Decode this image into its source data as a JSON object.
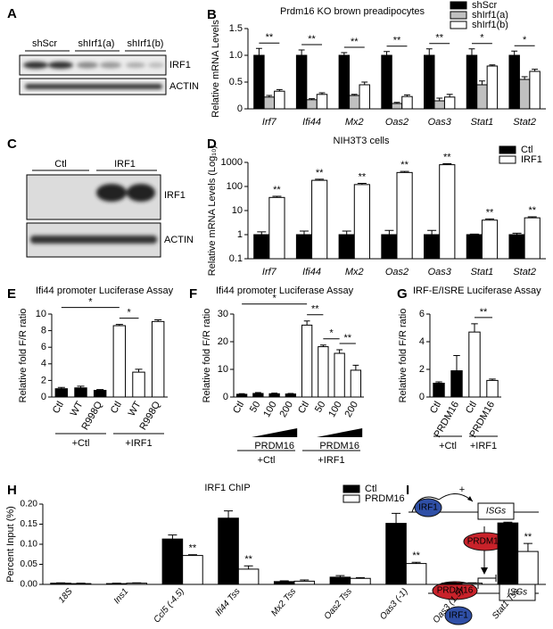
{
  "blots": [
    {
      "panel": "A",
      "lanes": [
        "shScr",
        "shIrf1(a)",
        "shIrf1(b)"
      ],
      "bands": [
        "IRF1",
        "ACTIN"
      ]
    },
    {
      "panel": "C",
      "lanes": [
        "Ctl",
        "IRF1"
      ],
      "bands": [
        "IRF1",
        "ACTIN"
      ]
    }
  ],
  "diagram": {
    "panel": "I",
    "labels": [
      "IRF1",
      "+",
      "ISGs",
      "PRDM16",
      "PRDM16",
      "ISGs",
      "IRF1"
    ]
  },
  "chart_data": [
    {
      "type": "bar",
      "panel": "B",
      "title": "Prdm16 KO brown preadipocytes",
      "ylabel": "Relative mRNA Levels",
      "categories": [
        "Irf7",
        "Ifi44",
        "Mx2",
        "Oas2",
        "Oas3",
        "Stat1",
        "Stat2"
      ],
      "series": [
        {
          "name": "shScr",
          "color": "#000000",
          "values": [
            1.0,
            1.0,
            1.0,
            1.0,
            1.0,
            1.0,
            1.0
          ],
          "errors": [
            0.13,
            0.1,
            0.05,
            0.07,
            0.12,
            0.12,
            0.08
          ]
        },
        {
          "name": "shIrf1(a)",
          "color": "#c0c0c0",
          "values": [
            0.22,
            0.17,
            0.25,
            0.1,
            0.15,
            0.45,
            0.55
          ],
          "errors": [
            0.03,
            0.02,
            0.02,
            0.02,
            0.05,
            0.07,
            0.05
          ]
        },
        {
          "name": "shIrf1(b)",
          "color": "#ffffff",
          "values": [
            0.33,
            0.27,
            0.45,
            0.23,
            0.22,
            0.8,
            0.7
          ],
          "errors": [
            0.03,
            0.03,
            0.05,
            0.03,
            0.05,
            0.02,
            0.04
          ]
        }
      ],
      "ylim": [
        0,
        1.5
      ],
      "yticks": [
        0,
        0.5,
        {
          "value": 1,
          "label": "1.0"
        },
        1.5
      ],
      "significance": [
        "**",
        "**",
        "**",
        "**",
        "**",
        "*",
        "*"
      ]
    },
    {
      "type": "bar",
      "panel": "D",
      "title": "NIH3T3 cells",
      "ylabel": "Relative mRNA Levels (Log₁₀)",
      "log_scale": true,
      "categories": [
        "Irf7",
        "Ifi44",
        "Mx2",
        "Oas2",
        "Oas3",
        "Stat1",
        "Stat2"
      ],
      "series": [
        {
          "name": "Ctl",
          "color": "#000000",
          "values": [
            1,
            1,
            1,
            1,
            1,
            1,
            1
          ],
          "errors": [
            0.3,
            0.4,
            0.4,
            0.5,
            0.5,
            0.05,
            0.15
          ]
        },
        {
          "name": "IRF1",
          "color": "#ffffff",
          "values": [
            35,
            180,
            120,
            380,
            800,
            4,
            5
          ],
          "errors": [
            4,
            20,
            15,
            40,
            80,
            0.5,
            0.5
          ]
        }
      ],
      "ylim": [
        0.1,
        1000
      ],
      "yticks": [
        0.1,
        1,
        10,
        100,
        1000
      ],
      "significance": [
        "**",
        "**",
        "**",
        "**",
        "**",
        "**",
        "**"
      ]
    },
    {
      "type": "bar",
      "panel": "E",
      "title": "Ifi44 promoter  Luciferase Assay",
      "ylabel": "Relative fold F/R ratio",
      "categories": [
        "Ctl",
        "WT",
        "R998Q",
        "Ctl",
        "WT",
        "R998Q"
      ],
      "values": [
        1.0,
        1.1,
        0.8,
        8.6,
        3.0,
        9.1
      ],
      "errors": [
        0.15,
        0.2,
        0.1,
        0.15,
        0.35,
        0.2
      ],
      "colors": [
        "#000000",
        "#000000",
        "#000000",
        "#ffffff",
        "#ffffff",
        "#ffffff"
      ],
      "ylim": [
        0,
        10
      ],
      "yticks": [
        0,
        2,
        4,
        6,
        8,
        10
      ],
      "significance": [
        "*",
        "*"
      ],
      "group_labels": [
        "+Ctl",
        "+IRF1"
      ]
    },
    {
      "type": "bar",
      "panel": "F",
      "title": "Ifi44 promoter  Luciferase Assay",
      "ylabel": "Relative fold F/R ratio",
      "categories": [
        "Ctl",
        "50",
        "100",
        "200",
        "Ctl",
        "50",
        "100",
        "200"
      ],
      "values": [
        1.0,
        1.3,
        1.2,
        1.1,
        26,
        18.2,
        15.8,
        9.7
      ],
      "errors": [
        0.2,
        0.3,
        0.2,
        0.2,
        1.5,
        0.6,
        1.3,
        1.8
      ],
      "colors": [
        "#000000",
        "#000000",
        "#000000",
        "#000000",
        "#ffffff",
        "#ffffff",
        "#ffffff",
        "#ffffff"
      ],
      "ylim": [
        0,
        30
      ],
      "yticks": [
        0,
        10,
        20,
        30
      ],
      "significance": [
        "*",
        "**",
        "*",
        "**"
      ],
      "treatment_labels": [
        "PRDM16",
        "PRDM16"
      ],
      "group_labels": [
        "+Ctl",
        "+IRF1"
      ]
    },
    {
      "type": "bar",
      "panel": "G",
      "title": "IRF-E/ISRE Luciferase Assay",
      "ylabel": "Relative fold F/R ratio",
      "categories": [
        "Ctl",
        "PRDM16",
        "Ctl",
        "PRDM16"
      ],
      "values": [
        1.0,
        1.9,
        4.7,
        1.2
      ],
      "errors": [
        0.1,
        1.1,
        0.6,
        0.1
      ],
      "colors": [
        "#000000",
        "#000000",
        "#ffffff",
        "#ffffff"
      ],
      "ylim": [
        0,
        6
      ],
      "yticks": [
        0,
        2,
        4,
        6
      ],
      "significance": [
        "**"
      ],
      "group_labels": [
        "+Ctl",
        "+IRF1"
      ]
    },
    {
      "type": "bar",
      "panel": "H",
      "title": "IRF1 ChIP",
      "ylabel": "Percent Input (%)",
      "categories": [
        "18S",
        "Ins1",
        "Ccl5 (-4.5)",
        "Ifi44 Tss",
        "Mx2 Tss",
        "Oas2 Tss",
        "Oas3 (-1)",
        "Oas3 (1.5)",
        "Stat1 Tss"
      ],
      "series": [
        {
          "name": "Ctl",
          "color": "#000000",
          "values": [
            0.003,
            0.002,
            0.113,
            0.165,
            0.007,
            0.018,
            0.152,
            0.003,
            0.153
          ],
          "errors": [
            0.001,
            0.001,
            0.01,
            0.018,
            0.002,
            0.004,
            0.025,
            0.001,
            0.002
          ]
        },
        {
          "name": "PRDM16",
          "color": "#ffffff",
          "values": [
            0.002,
            0.003,
            0.072,
            0.038,
            0.008,
            0.015,
            0.052,
            0.003,
            0.082
          ],
          "errors": [
            0.001,
            0.001,
            0.002,
            0.008,
            0.003,
            0.002,
            0.003,
            0.001,
            0.02
          ]
        }
      ],
      "ylim": [
        0,
        0.2
      ],
      "yticks": [
        {
          "value": 0,
          "label": "0.00"
        },
        {
          "value": 0.05,
          "label": "0.05"
        },
        {
          "value": 0.1,
          "label": "0.10"
        },
        {
          "value": 0.15,
          "label": "0.15"
        },
        {
          "value": 0.2,
          "label": "0.20"
        }
      ],
      "significance": [
        null,
        null,
        "**",
        "**",
        null,
        null,
        "**",
        null,
        "**"
      ]
    }
  ]
}
